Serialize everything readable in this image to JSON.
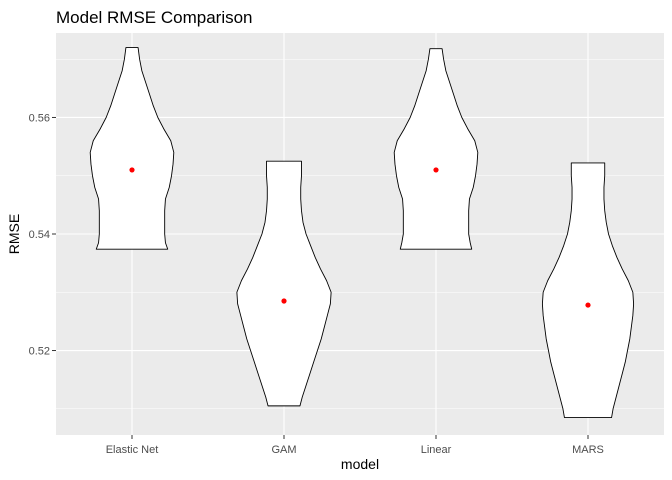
{
  "chart_data": {
    "type": "violin",
    "title": "Model RMSE Comparison",
    "xlabel": "model",
    "ylabel": "RMSE",
    "categories": [
      "Elastic Net",
      "GAM",
      "Linear",
      "MARS"
    ],
    "ylim": [
      0.5055,
      0.5745
    ],
    "yticks": [
      0.52,
      0.54,
      0.56
    ],
    "ytick_labels": [
      "0.52",
      "0.54",
      "0.56"
    ],
    "grid": true,
    "legend": "none",
    "colors": {
      "panel": "#ebebeb",
      "grid": "#ffffff",
      "violin_fill": "#ffffff",
      "violin_outline": "#000000",
      "mean_point": "#ff0000",
      "tick_label": "#4d4d4d"
    },
    "series": [
      {
        "category": "Elastic Net",
        "mean": 0.551,
        "min": 0.5374,
        "max": 0.572,
        "profile": [
          [
            0.5374,
            0.47
          ],
          [
            0.5385,
            0.44
          ],
          [
            0.54,
            0.43
          ],
          [
            0.542,
            0.43
          ],
          [
            0.544,
            0.43
          ],
          [
            0.546,
            0.44
          ],
          [
            0.548,
            0.49
          ],
          [
            0.55,
            0.52
          ],
          [
            0.552,
            0.54
          ],
          [
            0.554,
            0.55
          ],
          [
            0.556,
            0.51
          ],
          [
            0.558,
            0.42
          ],
          [
            0.56,
            0.34
          ],
          [
            0.562,
            0.28
          ],
          [
            0.564,
            0.23
          ],
          [
            0.566,
            0.18
          ],
          [
            0.568,
            0.13
          ],
          [
            0.57,
            0.1
          ],
          [
            0.572,
            0.08
          ]
        ]
      },
      {
        "category": "GAM",
        "mean": 0.5285,
        "min": 0.5105,
        "max": 0.5525,
        "profile": [
          [
            0.5105,
            0.21
          ],
          [
            0.512,
            0.24
          ],
          [
            0.514,
            0.29
          ],
          [
            0.516,
            0.34
          ],
          [
            0.518,
            0.39
          ],
          [
            0.52,
            0.44
          ],
          [
            0.522,
            0.49
          ],
          [
            0.524,
            0.53
          ],
          [
            0.526,
            0.57
          ],
          [
            0.528,
            0.61
          ],
          [
            0.53,
            0.62
          ],
          [
            0.532,
            0.56
          ],
          [
            0.534,
            0.48
          ],
          [
            0.536,
            0.41
          ],
          [
            0.538,
            0.35
          ],
          [
            0.54,
            0.29
          ],
          [
            0.542,
            0.25
          ],
          [
            0.544,
            0.23
          ],
          [
            0.546,
            0.22
          ],
          [
            0.548,
            0.22
          ],
          [
            0.55,
            0.23
          ],
          [
            0.5525,
            0.23
          ]
        ]
      },
      {
        "category": "Linear",
        "mean": 0.551,
        "min": 0.5374,
        "max": 0.5718,
        "profile": [
          [
            0.5374,
            0.47
          ],
          [
            0.5385,
            0.45
          ],
          [
            0.54,
            0.43
          ],
          [
            0.542,
            0.43
          ],
          [
            0.544,
            0.43
          ],
          [
            0.546,
            0.44
          ],
          [
            0.548,
            0.49
          ],
          [
            0.55,
            0.52
          ],
          [
            0.552,
            0.54
          ],
          [
            0.554,
            0.55
          ],
          [
            0.556,
            0.51
          ],
          [
            0.558,
            0.42
          ],
          [
            0.56,
            0.34
          ],
          [
            0.562,
            0.28
          ],
          [
            0.564,
            0.23
          ],
          [
            0.566,
            0.18
          ],
          [
            0.568,
            0.13
          ],
          [
            0.57,
            0.1
          ],
          [
            0.5718,
            0.08
          ]
        ]
      },
      {
        "category": "MARS",
        "mean": 0.5278,
        "min": 0.5085,
        "max": 0.5522,
        "profile": [
          [
            0.5085,
            0.31
          ],
          [
            0.51,
            0.33
          ],
          [
            0.512,
            0.37
          ],
          [
            0.514,
            0.41
          ],
          [
            0.516,
            0.45
          ],
          [
            0.518,
            0.49
          ],
          [
            0.52,
            0.52
          ],
          [
            0.522,
            0.55
          ],
          [
            0.524,
            0.57
          ],
          [
            0.526,
            0.59
          ],
          [
            0.528,
            0.6
          ],
          [
            0.53,
            0.59
          ],
          [
            0.532,
            0.53
          ],
          [
            0.534,
            0.45
          ],
          [
            0.536,
            0.38
          ],
          [
            0.538,
            0.32
          ],
          [
            0.54,
            0.27
          ],
          [
            0.542,
            0.24
          ],
          [
            0.544,
            0.22
          ],
          [
            0.546,
            0.21
          ],
          [
            0.548,
            0.21
          ],
          [
            0.55,
            0.22
          ],
          [
            0.5522,
            0.22
          ]
        ]
      }
    ]
  }
}
